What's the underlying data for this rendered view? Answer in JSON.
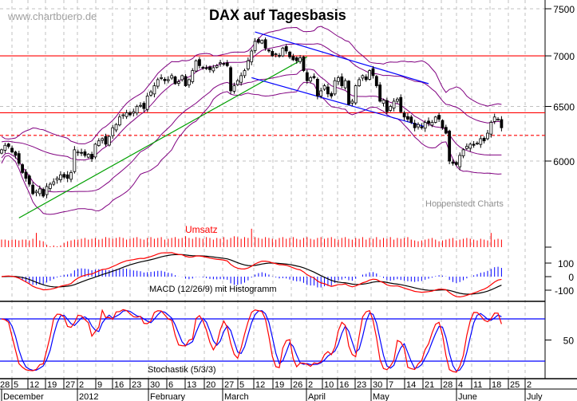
{
  "chart_data": {
    "type": "candlestick",
    "title": "DAX auf Tagesbasis",
    "watermark": "www.chartbuero.de",
    "source": "Hoppenstedt Charts",
    "price_axis": {
      "scale": "log",
      "ticks": [
        6000,
        6500,
        7000,
        7500
      ],
      "range": [
        5480,
        7560
      ]
    },
    "horizontal_lines": [
      {
        "value": 7000,
        "color": "#ff0000",
        "style": "solid"
      },
      {
        "value": 6440,
        "color": "#ff0000",
        "style": "solid"
      },
      {
        "value": 6230,
        "color": "#ff0000",
        "style": "dashed"
      }
    ],
    "trend_lines": [
      {
        "color": "#00a000",
        "from": {
          "index": 5,
          "value": 5520
        },
        "to": {
          "index": 88,
          "value": 6990
        }
      },
      {
        "color": "#0000ff",
        "from": {
          "index": 73,
          "value": 7250
        },
        "to": {
          "index": 123,
          "value": 6720
        }
      },
      {
        "color": "#0000ff",
        "from": {
          "index": 72,
          "value": 6780
        },
        "to": {
          "index": 122,
          "value": 6310
        }
      }
    ],
    "closes": [
      6100,
      6140,
      6130,
      6080,
      6050,
      5980,
      5900,
      5850,
      5800,
      5720,
      5740,
      5760,
      5700,
      5780,
      5800,
      5820,
      5850,
      5880,
      5860,
      5850,
      5900,
      6100,
      6080,
      6070,
      6050,
      6060,
      6020,
      6150,
      6180,
      6200,
      6150,
      6220,
      6300,
      6330,
      6400,
      6420,
      6440,
      6420,
      6450,
      6500,
      6510,
      6480,
      6600,
      6640,
      6700,
      6760,
      6780,
      6750,
      6760,
      6800,
      6720,
      6740,
      6800,
      6700,
      6760,
      6850,
      6950,
      6900,
      6880,
      6870,
      6860,
      6880,
      6900,
      6930,
      6920,
      6900,
      6650,
      6700,
      6750,
      6800,
      6850,
      6950,
      7050,
      7150,
      7140,
      7160,
      7080,
      7050,
      7000,
      7020,
      7000,
      7080,
      7050,
      6990,
      6960,
      6950,
      6980,
      6850,
      6750,
      6780,
      6780,
      6600,
      6650,
      6700,
      6620,
      6600,
      6750,
      6780,
      6700,
      6750,
      6520,
      6550,
      6700,
      6760,
      6800,
      6760,
      6850,
      6800,
      6700,
      6550,
      6560,
      6450,
      6500,
      6550,
      6570,
      6450,
      6400,
      6380,
      6350,
      6300,
      6330,
      6300,
      6350,
      6340,
      6350,
      6400,
      6380,
      6300,
      6250,
      6000,
      5980,
      5970,
      6050,
      6100,
      6130,
      6150,
      6140,
      6160,
      6200,
      6180,
      6250,
      6350,
      6400,
      6380,
      6300
    ],
    "volume_label": "Umsatz",
    "volume": [
      9,
      9,
      8,
      9,
      9,
      8,
      9,
      9,
      8,
      10,
      17,
      8,
      7,
      3,
      1,
      2,
      1,
      2,
      5,
      7,
      8,
      9,
      9,
      10,
      11,
      9,
      10,
      11,
      9,
      10,
      12,
      11,
      10,
      11,
      12,
      11,
      9,
      10,
      11,
      12,
      10,
      9,
      11,
      12,
      10,
      11,
      12,
      9,
      10,
      11,
      12,
      10,
      11,
      13,
      11,
      10,
      12,
      11,
      10,
      12,
      11,
      9,
      11,
      10,
      12,
      9,
      11,
      13,
      12,
      10,
      12,
      11,
      22,
      12,
      11,
      10,
      12,
      11,
      10,
      9,
      11,
      12,
      10,
      11,
      12,
      10,
      9,
      11,
      12,
      10,
      9,
      11,
      12,
      10,
      11,
      12,
      10,
      9,
      11,
      12,
      10,
      9,
      11,
      10,
      12,
      9,
      11,
      10,
      12,
      9,
      11,
      10,
      12,
      9,
      11,
      10,
      11,
      12,
      9,
      8,
      7,
      8,
      9,
      10,
      11,
      9,
      7,
      8,
      9,
      10,
      11,
      8,
      9,
      10,
      11,
      10,
      9,
      8,
      10,
      9,
      8,
      17,
      9,
      10,
      9
    ],
    "macd": {
      "label": "MACD (12/26/9) mit Histogramm",
      "ticks": [
        100,
        0,
        -100
      ]
    },
    "stochastic": {
      "label": "Stochastik (5/3/3)",
      "ticks": [
        50
      ],
      "levels": [
        20,
        80
      ]
    },
    "x_axis": {
      "day_ticks": [
        "28",
        "5",
        "12",
        "19",
        "27",
        "2",
        "9",
        "16",
        "23",
        "30",
        "6",
        "13",
        "20",
        "27",
        "5",
        "12",
        "19",
        "26",
        "2",
        "10",
        "16",
        "23",
        "30",
        "7",
        "14",
        "21",
        "28",
        "4",
        "11",
        "18",
        "25",
        "2"
      ],
      "months": [
        "December",
        "2012",
        "February",
        "March",
        "April",
        "May",
        "June",
        "July"
      ]
    },
    "colors": {
      "bands": "#800080",
      "macd": "#ff0000",
      "signal": "#000000",
      "histogram": "#0000ff",
      "stoch_k": "#ff0000",
      "stoch_d": "#0000ff",
      "volume": "#ff0000",
      "grid": "#c0c0c0"
    }
  }
}
